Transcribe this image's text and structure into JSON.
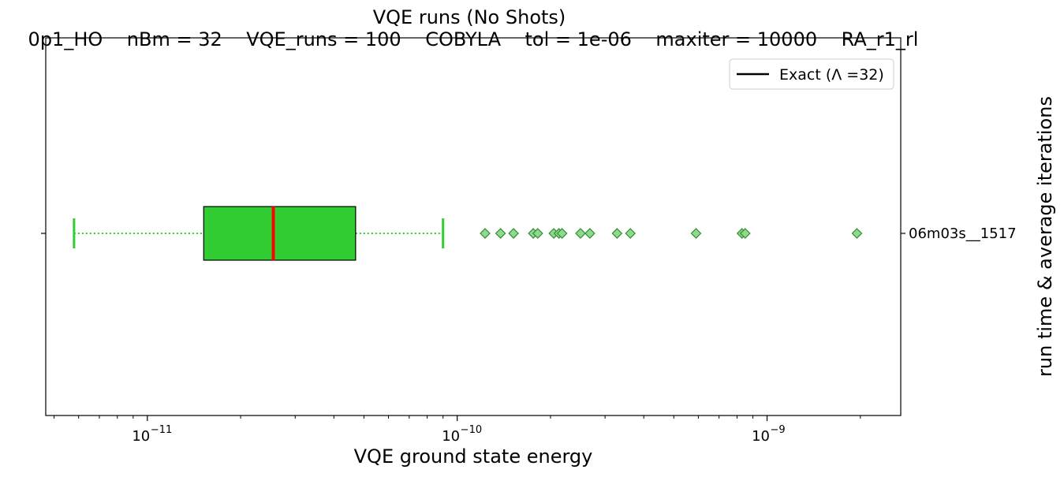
{
  "chart_data": {
    "type": "boxplot",
    "orientation": "horizontal",
    "title": "VQE runs (No Shots)",
    "subtitle": "0p1_HO    nBm = 32    VQE_runs = 100    COBYLA    tol = 1e-06    maxiter = 10000    RA_r1_rl",
    "xlabel": "VQE ground state energy",
    "ylabel": "run time & average iterations",
    "xscale": "log",
    "xlim": [
      4.7e-12,
      2.7e-09
    ],
    "x_ticks": [
      {
        "value": 1e-11,
        "base": "10",
        "exp": "−11"
      },
      {
        "value": 1e-10,
        "base": "10",
        "exp": "−10"
      },
      {
        "value": 1e-09,
        "base": "10",
        "exp": "−9"
      }
    ],
    "categories": [
      "06m03s__1517"
    ],
    "box": {
      "whisker_low": 5.8e-12,
      "q1": 1.52e-11,
      "median": 2.55e-11,
      "q3": 4.7e-11,
      "whisker_high": 9e-11,
      "outliers": [
        1.23e-10,
        1.38e-10,
        1.52e-10,
        1.76e-10,
        1.82e-10,
        2.05e-10,
        2.13e-10,
        2.18e-10,
        2.5e-10,
        2.68e-10,
        3.28e-10,
        3.62e-10,
        5.9e-10,
        8.3e-10,
        8.5e-10,
        1.95e-09
      ]
    },
    "legend": {
      "label": "Exact (Λ =32)",
      "position": "top-right"
    },
    "grid": false,
    "colors": {
      "box_fill": "#32cd32",
      "median": "#ff0000",
      "whisker": "#32cd32",
      "outlier_fill": "#90d890",
      "outlier_edge": "#2e8b2e",
      "legend_line": "#000000"
    }
  }
}
